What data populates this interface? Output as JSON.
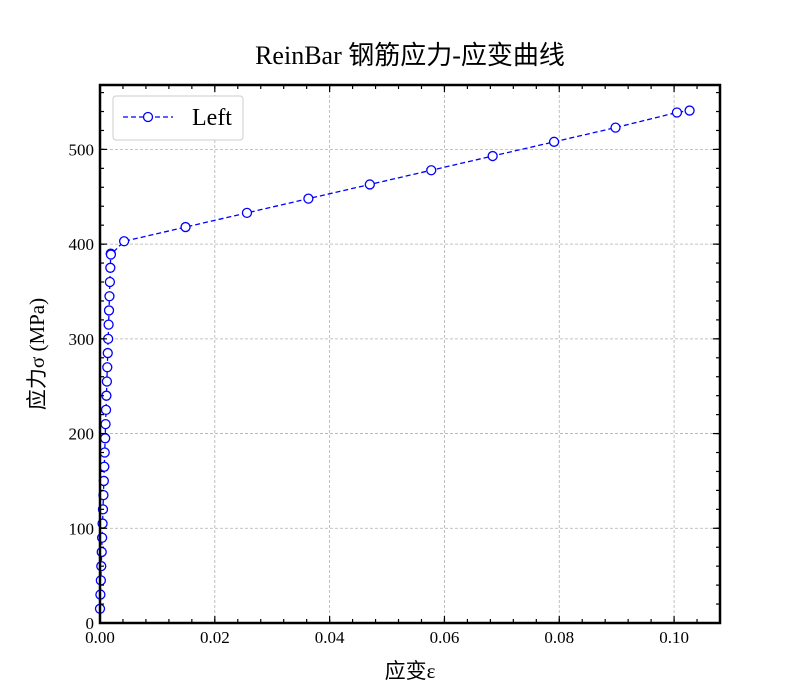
{
  "chart_data": {
    "type": "line",
    "title": "ReinBar 钢筋应力-应变曲线",
    "xlabel": "应变ε",
    "ylabel": "应力σ (MPa)",
    "xlim": [
      0,
      0.108
    ],
    "ylim": [
      0,
      568
    ],
    "x_ticks": [
      0.0,
      0.02,
      0.04,
      0.06,
      0.08,
      0.1
    ],
    "x_tick_labels": [
      "0.00",
      "0.02",
      "0.04",
      "0.06",
      "0.08",
      "0.10"
    ],
    "y_ticks": [
      0,
      100,
      200,
      300,
      400,
      500
    ],
    "y_tick_labels": [
      "0",
      "100",
      "200",
      "300",
      "400",
      "500"
    ],
    "grid": true,
    "legend_position": "top-left",
    "series": [
      {
        "name": "Left",
        "color": "#0000ff",
        "line_style": "dashed",
        "marker": "open-circle",
        "x": [
          0.0,
          7e-05,
          0.00015,
          0.00022,
          0.0003,
          0.00037,
          0.00045,
          0.00052,
          0.0006,
          0.00067,
          0.00075,
          0.00082,
          0.0009,
          0.00097,
          0.00105,
          0.00112,
          0.0012,
          0.00127,
          0.00135,
          0.00142,
          0.0015,
          0.00157,
          0.00165,
          0.00172,
          0.0018,
          0.00187,
          0.0019,
          0.0042,
          0.0149,
          0.0256,
          0.0363,
          0.047,
          0.0577,
          0.0684,
          0.0791,
          0.0898,
          0.1005,
          0.1027
        ],
        "y": [
          15,
          30,
          45,
          60,
          75,
          90,
          105,
          120,
          135,
          150,
          165,
          180,
          195,
          210,
          225,
          240,
          255,
          270,
          285,
          300,
          315,
          330,
          345,
          360,
          375,
          390,
          389,
          403,
          418,
          433,
          448,
          463,
          478,
          493,
          508,
          523,
          539,
          541
        ]
      }
    ]
  }
}
